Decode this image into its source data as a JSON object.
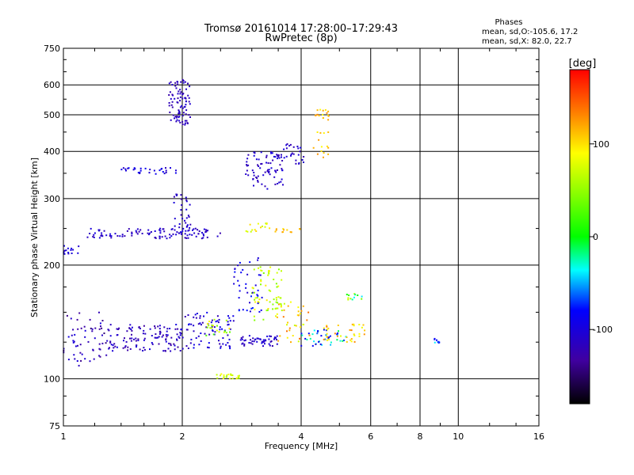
{
  "chart_data": {
    "type": "scatter",
    "title": "Tromsø 20161014 17:28:00–17:29:43",
    "subtitle": "RwPretec (8p)",
    "xlabel": "Frequency [MHz]",
    "ylabel": "Stationary phase Virtual Height [km]",
    "x_scale": "log",
    "y_scale": "log",
    "xlim": [
      1,
      16
    ],
    "ylim": [
      75,
      750
    ],
    "x_ticks": [
      1,
      2,
      4,
      6,
      8,
      10,
      16
    ],
    "y_ticks": [
      75,
      100,
      200,
      300,
      400,
      500,
      600,
      750
    ],
    "grid": true,
    "phases_info": {
      "title": "Phases",
      "line_o": "mean, sd,O:-105.6, 17.2",
      "line_x": "mean, sd,X:  82.0, 22.7"
    },
    "colorbar": {
      "label": "[deg]",
      "range": [
        -180,
        180
      ],
      "ticks": [
        100,
        0,
        -100
      ]
    },
    "colors": {
      "grid": "#000000",
      "background": "#ffffff"
    },
    "clusters": [
      {
        "x": [
          1.0,
          1.3
        ],
        "y": [
          108,
          150
        ],
        "n": 60,
        "phase": -120,
        "spread": 25
      },
      {
        "x": [
          1.3,
          2.0
        ],
        "y": [
          118,
          140
        ],
        "n": 120,
        "phase": -115,
        "spread": 20
      },
      {
        "x": [
          2.0,
          2.7
        ],
        "y": [
          120,
          150
        ],
        "n": 80,
        "phase": -105,
        "spread": 20
      },
      {
        "x": [
          2.3,
          2.7
        ],
        "y": [
          130,
          145
        ],
        "n": 20,
        "phase": 60,
        "spread": 40
      },
      {
        "x": [
          2.8,
          3.5
        ],
        "y": [
          122,
          130
        ],
        "n": 50,
        "phase": -110,
        "spread": 15
      },
      {
        "x": [
          3.0,
          3.6
        ],
        "y": [
          140,
          200
        ],
        "n": 60,
        "phase": 70,
        "spread": 30
      },
      {
        "x": [
          2.7,
          3.2
        ],
        "y": [
          150,
          210
        ],
        "n": 40,
        "phase": -90,
        "spread": 20
      },
      {
        "x": [
          3.4,
          4.2
        ],
        "y": [
          125,
          160
        ],
        "n": 40,
        "phase": 100,
        "spread": 40
      },
      {
        "x": [
          4.0,
          5.2
        ],
        "y": [
          122,
          135
        ],
        "n": 40,
        "phase": -60,
        "spread": 50
      },
      {
        "x": [
          4.5,
          5.8
        ],
        "y": [
          125,
          140
        ],
        "n": 35,
        "phase": 110,
        "spread": 30
      },
      {
        "x": [
          5.2,
          5.8
        ],
        "y": [
          162,
          168
        ],
        "n": 12,
        "phase": 20,
        "spread": 60
      },
      {
        "x": [
          2.4,
          2.8
        ],
        "y": [
          100,
          103
        ],
        "n": 25,
        "phase": 75,
        "spread": 20
      },
      {
        "x": [
          1.0,
          1.1
        ],
        "y": [
          212,
          225
        ],
        "n": 15,
        "phase": -100,
        "spread": 10
      },
      {
        "x": [
          1.15,
          2.5
        ],
        "y": [
          235,
          250
        ],
        "n": 110,
        "phase": -110,
        "spread": 15
      },
      {
        "x": [
          2.9,
          3.4
        ],
        "y": [
          245,
          258
        ],
        "n": 15,
        "phase": 85,
        "spread": 20
      },
      {
        "x": [
          3.4,
          4.0
        ],
        "y": [
          244,
          250
        ],
        "n": 12,
        "phase": 110,
        "spread": 15
      },
      {
        "x": [
          1.9,
          2.1
        ],
        "y": [
          250,
          310
        ],
        "n": 30,
        "phase": -110,
        "spread": 15
      },
      {
        "x": [
          1.4,
          1.95
        ],
        "y": [
          348,
          362
        ],
        "n": 30,
        "phase": -100,
        "spread": 15
      },
      {
        "x": [
          2.85,
          3.6
        ],
        "y": [
          318,
          400
        ],
        "n": 80,
        "phase": -110,
        "spread": 15
      },
      {
        "x": [
          3.6,
          4.1
        ],
        "y": [
          370,
          420
        ],
        "n": 25,
        "phase": -110,
        "spread": 15
      },
      {
        "x": [
          4.3,
          4.7
        ],
        "y": [
          380,
          520
        ],
        "n": 30,
        "phase": 110,
        "spread": 20
      },
      {
        "x": [
          1.85,
          2.1
        ],
        "y": [
          470,
          620
        ],
        "n": 90,
        "phase": -115,
        "spread": 12
      },
      {
        "x": [
          8.7,
          8.95
        ],
        "y": [
          124,
          128
        ],
        "n": 8,
        "phase": -60,
        "spread": 30
      }
    ]
  }
}
